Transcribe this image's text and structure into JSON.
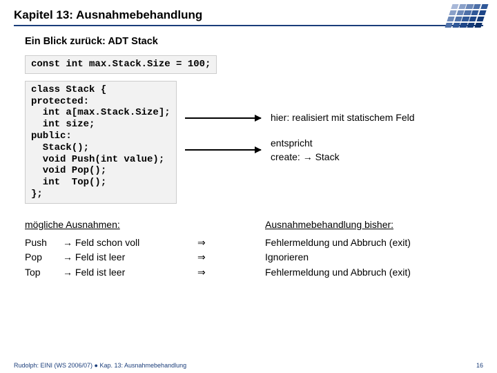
{
  "header": {
    "title": "Kapitel 13: Ausnahmebehandlung",
    "subtitle": "Ein Blick zurück: ADT Stack"
  },
  "logo": {
    "cells": [
      "#a8b8d8",
      "#8aa0c8",
      "#6c88b8",
      "#4e70a8",
      "#305898",
      "#8aa0c8",
      "#6c88b8",
      "#4e70a8",
      "#305898",
      "#1e4688",
      "#6c88b8",
      "#4e70a8",
      "#305898",
      "#1e4688",
      "#143a78",
      "#4e70a8",
      "#305898",
      "#1e4688",
      "#143a78",
      "#0c2f68"
    ]
  },
  "code1": "const int max.Stack.Size = 100;",
  "code2": "class Stack {\nprotected:\n  int a[max.Stack.Size];\n  int size;\npublic:\n  Stack();\n  void Push(int value);\n  void Pop();\n  int  Top();\n};",
  "annot1": "hier: realisiert mit statischem Feld",
  "annot2_line1": "entspricht",
  "annot2_line2": "create:    → Stack",
  "exceptions": {
    "left_title": "mögliche Ausnahmen:",
    "right_title": "Ausnahmebehandlung bisher:",
    "rows": [
      {
        "op": "Push",
        "cond": "→ Feld schon voll",
        "imp": "⇒",
        "handling": "Fehlermeldung und Abbruch (exit)"
      },
      {
        "op": "Pop",
        "cond": "→ Feld ist leer",
        "imp": "⇒",
        "handling": "Ignorieren"
      },
      {
        "op": "Top",
        "cond": "→ Feld ist leer",
        "imp": "⇒",
        "handling": "Fehlermeldung und Abbruch (exit)"
      }
    ]
  },
  "footer": {
    "left": "Rudolph: EINI (WS 2006/07)  ●  Kap. 13: Ausnahmebehandlung",
    "pagenum": "16"
  }
}
